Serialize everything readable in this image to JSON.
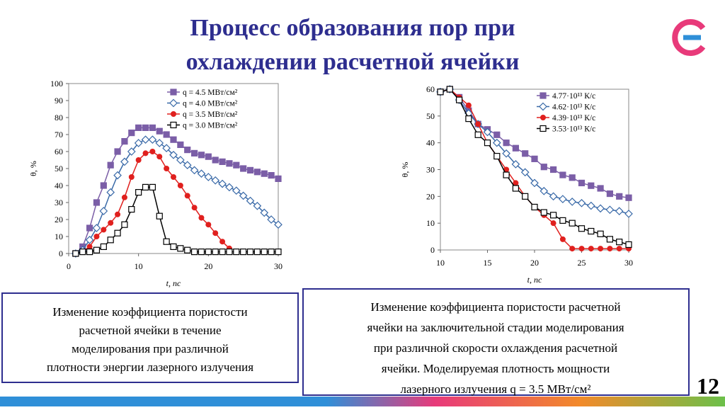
{
  "title": [
    "Процесс образования пор при",
    "охлаждении расчетной ячейки"
  ],
  "captions": [
    [
      "Изменение коэффициента пористости",
      "расчетной ячейки в течение",
      "моделирования при различной",
      "плотности энергии лазерного излучения"
    ],
    [
      "Изменение коэффициента пористости расчетной",
      "ячейки на заключительной стадии моделирования",
      "при различной скорости охлаждения расчетной",
      "ячейки. Моделируемая плотность мощности",
      "лазерного излучения q = 3.5 МВт/см²"
    ]
  ],
  "page_number": "12",
  "chart_data": [
    {
      "type": "line",
      "xlabel": "t, пс",
      "ylabel": "θ, %",
      "x": [
        1,
        2,
        3,
        4,
        5,
        6,
        7,
        8,
        9,
        10,
        11,
        12,
        13,
        14,
        15,
        16,
        17,
        18,
        19,
        20,
        21,
        22,
        23,
        24,
        25,
        26,
        27,
        28,
        29,
        30
      ],
      "xlim": [
        0,
        30
      ],
      "xticks": [
        0,
        10,
        20,
        30
      ],
      "ylim": [
        0,
        100
      ],
      "yticks": [
        0,
        10,
        20,
        30,
        40,
        50,
        60,
        70,
        80,
        90,
        100
      ],
      "legend": "upper right",
      "series": [
        {
          "name": "q = 4.5 МВт/см²",
          "color": "#7b5ea7",
          "marker": "square",
          "values": [
            0,
            4,
            15,
            30,
            40,
            52,
            60,
            66,
            71,
            74,
            74,
            74,
            72,
            70,
            67,
            64,
            61,
            59,
            58,
            57,
            55,
            54,
            53,
            52,
            50,
            49,
            48,
            47,
            46,
            44
          ]
        },
        {
          "name": "q = 4.0 МВт/см²",
          "color": "#3a6aa8",
          "marker": "diamond",
          "values": [
            0,
            2,
            8,
            15,
            25,
            36,
            46,
            54,
            60,
            65,
            67,
            67,
            65,
            62,
            58,
            55,
            52,
            49,
            47,
            45,
            43,
            41,
            39,
            37,
            34,
            31,
            28,
            24,
            20,
            17
          ]
        },
        {
          "name": "q = 3.5 МВт/см²",
          "color": "#e0201e",
          "marker": "circle",
          "values": [
            0,
            1,
            4,
            10,
            14,
            18,
            23,
            33,
            45,
            55,
            59,
            60,
            57,
            50,
            45,
            40,
            34,
            27,
            21,
            17,
            12,
            7,
            3,
            null,
            null,
            null,
            null,
            null,
            null,
            null
          ]
        },
        {
          "name": "q = 3.0 МВт/см²",
          "color": "#000000",
          "marker": "square-open",
          "values": [
            0,
            1,
            1,
            2,
            4,
            8,
            12,
            17,
            26,
            36,
            39,
            39,
            22,
            7,
            4,
            3,
            2,
            1,
            1,
            1,
            1,
            1,
            1,
            1,
            1,
            1,
            1,
            1,
            1,
            1
          ]
        }
      ]
    },
    {
      "type": "line",
      "xlabel": "t, пс",
      "ylabel": "θ, %",
      "x": [
        10,
        11,
        12,
        13,
        14,
        15,
        16,
        17,
        18,
        19,
        20,
        21,
        22,
        23,
        24,
        25,
        26,
        27,
        28,
        29,
        30
      ],
      "xlim": [
        10,
        30
      ],
      "xticks": [
        10,
        15,
        20,
        25,
        30
      ],
      "ylim": [
        0,
        60
      ],
      "yticks": [
        0,
        10,
        20,
        30,
        40,
        50,
        60
      ],
      "legend": "upper right",
      "series": [
        {
          "name": "4.77·10¹³ К/с",
          "color": "#7b5ea7",
          "marker": "square",
          "values": [
            59,
            60,
            57,
            52,
            47,
            45,
            43,
            40,
            38,
            36,
            34,
            31,
            30,
            28,
            27,
            25,
            24,
            23,
            21,
            20,
            19.5
          ]
        },
        {
          "name": "4.62·10¹³ К/с",
          "color": "#3a6aa8",
          "marker": "diamond",
          "values": [
            59,
            60,
            56,
            51,
            47,
            44,
            40,
            36,
            32,
            29,
            25,
            22,
            20,
            19,
            18,
            17.5,
            16.5,
            15.5,
            15,
            14.5,
            13.5
          ]
        },
        {
          "name": "4.39·10¹³ К/с",
          "color": "#e0201e",
          "marker": "circle",
          "values": [
            59,
            60,
            57,
            54,
            47,
            40,
            35,
            30,
            25,
            20,
            16,
            13,
            10,
            4,
            0.5,
            0.5,
            0.5,
            0.5,
            0.5,
            0.5,
            0.5
          ]
        },
        {
          "name": "3.53·10¹³ К/с",
          "color": "#000000",
          "marker": "square-open",
          "values": [
            59,
            60,
            56,
            49,
            43,
            40,
            35,
            28,
            23,
            20,
            16,
            14,
            13,
            11,
            10,
            8,
            7,
            6,
            4,
            3,
            2
          ]
        }
      ]
    }
  ]
}
